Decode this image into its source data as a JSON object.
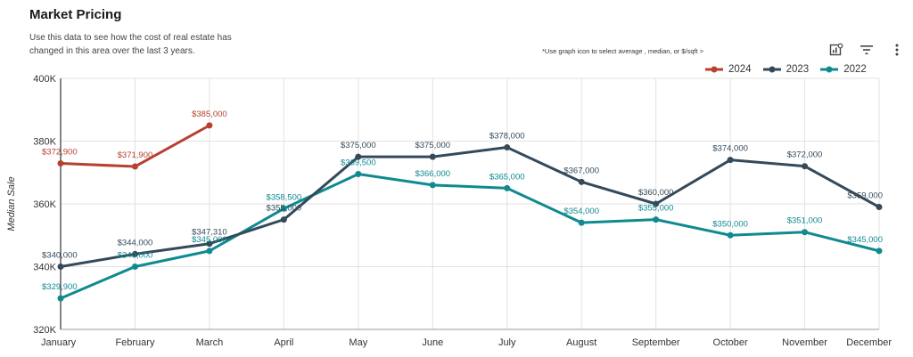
{
  "header": {
    "title": "Market Pricing",
    "subtitle": "Use this data to see how the cost of real estate has changed in this area over the last 3 years.",
    "hint": "*Use graph icon to  select average , median, or $/sqft  >"
  },
  "toolbar": {
    "icons": [
      "chart-settings-icon",
      "filter-icon",
      "more-vert-icon"
    ]
  },
  "chart_data": {
    "type": "line",
    "title": "Market Pricing",
    "xlabel": "",
    "ylabel": "Median Sale",
    "categories": [
      "January",
      "February",
      "March",
      "April",
      "May",
      "June",
      "July",
      "August",
      "September",
      "October",
      "November",
      "December"
    ],
    "ylim": [
      320000,
      400000
    ],
    "yticks": [
      320000,
      340000,
      360000,
      380000,
      400000
    ],
    "ytick_labels": [
      "320K",
      "340K",
      "360K",
      "380K",
      "400K"
    ],
    "grid": true,
    "legend": "top-right",
    "series": [
      {
        "name": "2024",
        "color": "#b5412e",
        "values": [
          372900,
          371900,
          385000,
          null,
          null,
          null,
          null,
          null,
          null,
          null,
          null,
          null
        ],
        "labels": [
          "$372,900",
          "$371,900",
          "$385,000"
        ]
      },
      {
        "name": "2023",
        "color": "#34495a",
        "values": [
          340000,
          344000,
          347310,
          355000,
          375000,
          375000,
          378000,
          367000,
          360000,
          374000,
          372000,
          359000
        ],
        "labels": [
          "$340,000",
          "$344,000",
          "$347,310",
          "$355,000",
          "$375,000",
          "$375,000",
          "$378,000",
          "$367,000",
          "$360,000",
          "$374,000",
          "$372,000",
          "$359,000"
        ]
      },
      {
        "name": "2022",
        "color": "#0f8a90",
        "values": [
          329900,
          340000,
          345000,
          358500,
          369500,
          366000,
          365000,
          354000,
          355000,
          350000,
          351000,
          345000
        ],
        "labels": [
          "$329,900",
          "$340,000",
          "$345,000",
          "$358,500",
          "$369,500",
          "$366,000",
          "$365,000",
          "$354,000",
          "$355,000",
          "$350,000",
          "$351,000",
          "$345,000"
        ]
      }
    ]
  }
}
